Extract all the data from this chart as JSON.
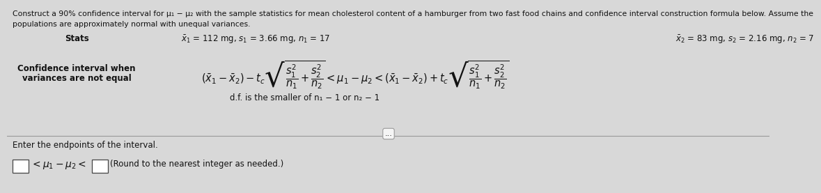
{
  "title_line1": "Construct a 90% confidence interval for μ₁ − μ₂ with the sample statistics for mean cholesterol content of a hamburger from two fast food chains and confidence interval construction formula below. Assume the",
  "title_line2": "populations are approximately normal with unequal variances.",
  "stats_label": "Stats",
  "stats_left": "$\\bar{x}_1$ = 112 mg, s₁ = 3.66 mg, n₁ = 17",
  "stats_right": "$\\bar{x}_2$ = 83 mg, s₂ = 2.16 mg, n₂ = 7",
  "ci_label_line1": "Confidence interval when",
  "ci_label_line2": "variances are not equal",
  "df_note": "d.f. is the smaller of n₁ − 1 or n₂ − 1",
  "enter_text": "Enter the endpoints of the interval.",
  "bg_color": "#d8d8d8",
  "text_color": "#111111",
  "formula": "$\\left(\\bar{x}_1-\\bar{x}_2\\right)-t_c\\sqrt{\\dfrac{s_1^2}{n_1}+\\dfrac{s_2^2}{n_2}}<\\mu_1-\\mu_2<\\left(\\bar{x}_1-\\bar{x}_2\\right)+t_c\\sqrt{\\dfrac{s_1^2}{n_1}+\\dfrac{s_2^2}{n_2}}$"
}
